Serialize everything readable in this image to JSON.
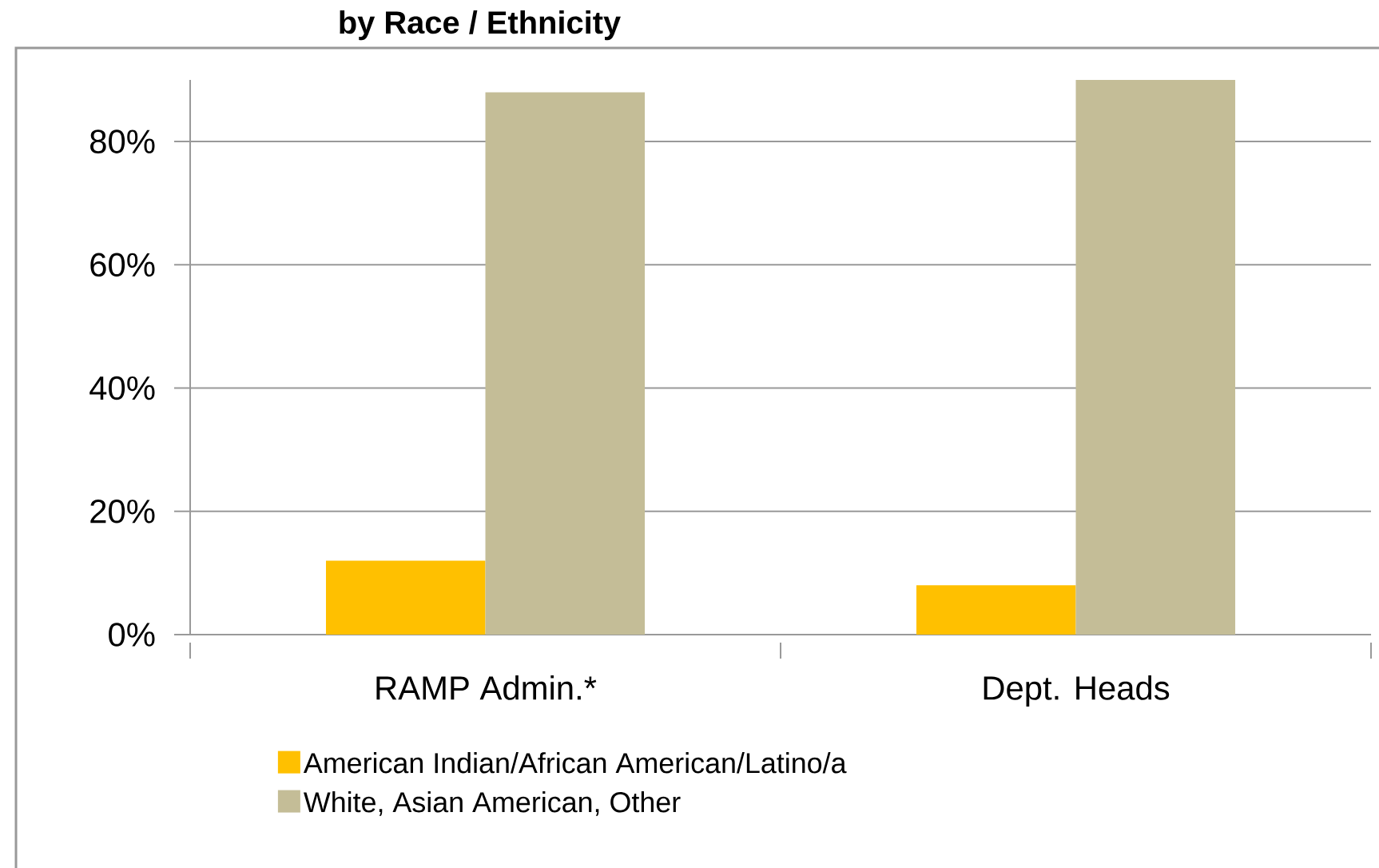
{
  "chart_data": {
    "type": "bar",
    "title": "by Race / Ethnicity",
    "categories": [
      "RAMP Admin.*",
      "Dept. Heads"
    ],
    "series": [
      {
        "name": "American Indian/African American/Latino/a",
        "color": "#ffc000",
        "values": [
          12,
          8
        ]
      },
      {
        "name": "White, Asian American, Other",
        "color": "#c4bd97",
        "values": [
          88,
          90
        ]
      }
    ],
    "ylim": [
      0,
      90
    ],
    "yticks": [
      {
        "value": 0,
        "label": "0%"
      },
      {
        "value": 20,
        "label": "20%"
      },
      {
        "value": 40,
        "label": "40%"
      },
      {
        "value": 60,
        "label": "60%"
      },
      {
        "value": 80,
        "label": "80%"
      }
    ],
    "grid": "y",
    "legend": "bottom"
  }
}
